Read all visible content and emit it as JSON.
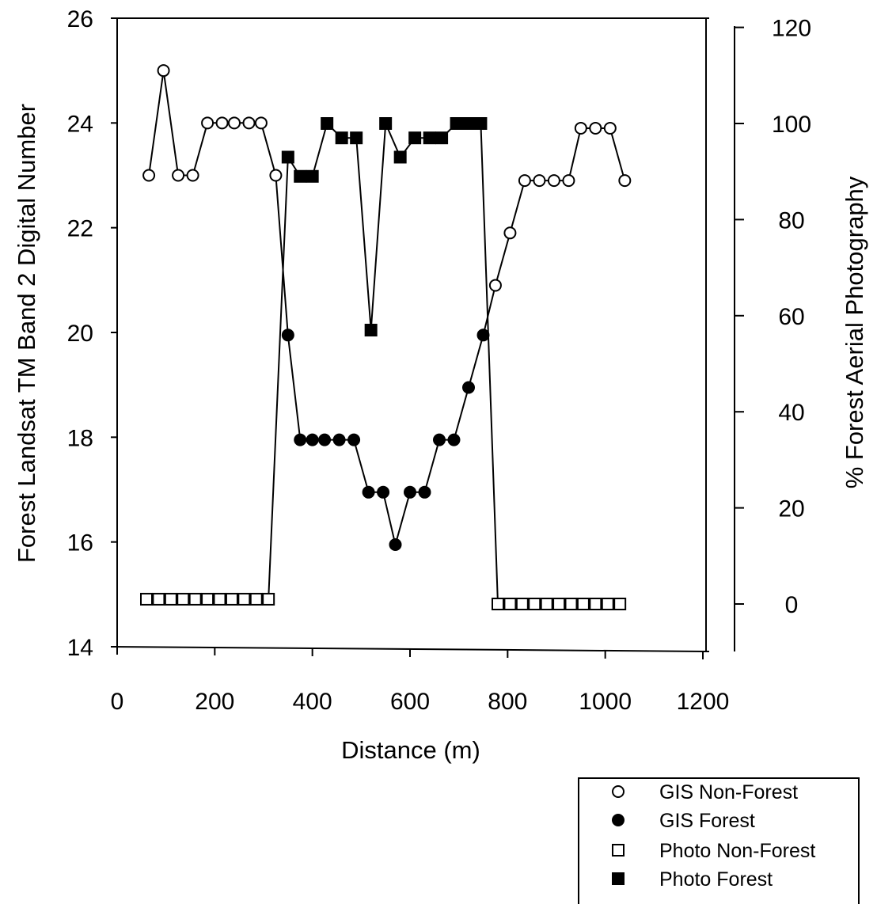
{
  "chart_data": {
    "type": "scatter",
    "xlabel": "Distance (m)",
    "ylabel": "Forest Landsat TM Band 2 Digital Number",
    "y2label": "% Forest Aerial Photography",
    "xlim": [
      0,
      1200
    ],
    "ylim": [
      14,
      26
    ],
    "y2lim": [
      -9,
      120
    ],
    "xticks": [
      "0",
      "200",
      "400",
      "600",
      "800",
      "1000",
      "1200"
    ],
    "yticks": [
      "14",
      "16",
      "18",
      "20",
      "22",
      "24",
      "26"
    ],
    "y2ticks": [
      "0",
      "20",
      "40",
      "60",
      "80",
      "100",
      "120"
    ],
    "grid": false,
    "legend_position": "bottom-right",
    "series": [
      {
        "name": "GIS Non-Forest",
        "axis": "left",
        "marker": "open-circle",
        "x": [
          65,
          95,
          125,
          155,
          185,
          215,
          240,
          270,
          295,
          325,
          775,
          805,
          835,
          865,
          895,
          925,
          950,
          980,
          1010,
          1040
        ],
        "y": [
          23,
          25,
          23,
          23,
          24,
          24,
          24,
          24,
          24,
          23,
          20.9,
          21.9,
          22.9,
          22.9,
          22.9,
          22.9,
          23.9,
          23.9,
          23.9,
          22.9
        ]
      },
      {
        "name": "GIS Forest",
        "axis": "left",
        "marker": "filled-circle",
        "x": [
          350,
          375,
          400,
          425,
          455,
          485,
          515,
          545,
          570,
          600,
          630,
          660,
          690,
          720,
          750
        ],
        "y": [
          19.95,
          17.95,
          17.95,
          17.95,
          17.95,
          17.95,
          16.95,
          16.95,
          15.95,
          16.95,
          16.95,
          17.95,
          17.95,
          18.95,
          19.95
        ]
      },
      {
        "name": "Photo Non-Forest",
        "axis": "right",
        "marker": "open-square",
        "x": [
          60,
          85,
          110,
          135,
          160,
          185,
          210,
          235,
          260,
          285,
          310,
          780,
          805,
          830,
          855,
          880,
          905,
          930,
          955,
          980,
          1005,
          1030
        ],
        "y": [
          1,
          1,
          1,
          1,
          1,
          1,
          1,
          1,
          1,
          1,
          1,
          0,
          0,
          0,
          0,
          0,
          0,
          0,
          0,
          0,
          0,
          0
        ]
      },
      {
        "name": "Photo Forest",
        "axis": "right",
        "marker": "filled-square",
        "x": [
          350,
          375,
          400,
          430,
          460,
          490,
          520,
          550,
          580,
          610,
          640,
          665,
          695,
          720,
          745
        ],
        "y": [
          93,
          89,
          89,
          100,
          97,
          97,
          57,
          100,
          93,
          97,
          97,
          97,
          100,
          100,
          100
        ]
      }
    ],
    "connectors": [
      {
        "from": "Photo Non-Forest",
        "from_index": 10,
        "to": "Photo Forest",
        "to_index": 0
      },
      {
        "from": "GIS Non-Forest",
        "from_index": 9,
        "to": "GIS Forest",
        "to_index": 0
      },
      {
        "from": "GIS Forest",
        "from_index": 14,
        "to": "GIS Non-Forest",
        "to_index": 10
      },
      {
        "from": "Photo Forest",
        "from_index": 14,
        "to": "Photo Non-Forest",
        "to_index": 11
      }
    ]
  }
}
